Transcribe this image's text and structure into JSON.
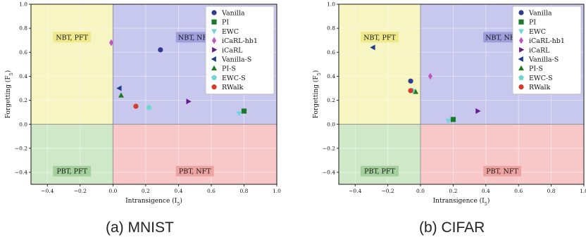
{
  "chart_data": [
    {
      "type": "scatter",
      "caption": "(a) MNIST",
      "xlabel": "Intransigence (I_5)",
      "ylabel": "Forgetting (F_5)",
      "xlim": [
        -0.5,
        1.0
      ],
      "ylim": [
        -0.5,
        1.0
      ],
      "xticks": [
        "−0.4",
        "−0.2",
        "0.0",
        "0.2",
        "0.4",
        "0.6",
        "0.8",
        "1.0"
      ],
      "yticks": [
        "−0.4",
        "−0.2",
        "0.0",
        "0.2",
        "0.4",
        "0.6",
        "0.8",
        "1.0"
      ],
      "grid": true,
      "legend_position": "top-right",
      "regions": [
        {
          "label": "NBT, PFT",
          "x": [
            -0.5,
            0.0
          ],
          "y": [
            0.0,
            1.0
          ],
          "color": "#f7f5c2",
          "label_bg": "#eeea8c"
        },
        {
          "label": "NBT, NFT",
          "x": [
            0.0,
            1.0
          ],
          "y": [
            0.0,
            1.0
          ],
          "color": "#c8c8ee",
          "label_bg": "#9e9edc"
        },
        {
          "label": "PBT, PFT",
          "x": [
            -0.5,
            0.0
          ],
          "y": [
            -0.5,
            0.0
          ],
          "color": "#cfe8c8",
          "label_bg": "#a3d09c"
        },
        {
          "label": "PBT, NFT",
          "x": [
            0.0,
            1.0
          ],
          "y": [
            -0.5,
            0.0
          ],
          "color": "#f8c8c8",
          "label_bg": "#eea3a3"
        }
      ],
      "series": [
        {
          "name": "Vanilla",
          "marker": "circle",
          "color": "#2e3d8f",
          "x": 0.29,
          "y": 0.62
        },
        {
          "name": "PI",
          "marker": "square",
          "color": "#1b7a2a",
          "x": 0.8,
          "y": 0.11
        },
        {
          "name": "EWC",
          "marker": "triangle-down",
          "color": "#6fd3e0",
          "x": 0.77,
          "y": 0.09
        },
        {
          "name": "iCaRL-hb1",
          "marker": "diamond",
          "color": "#c154c1",
          "x": -0.01,
          "y": 0.68
        },
        {
          "name": "iCaRL",
          "marker": "triangle-right",
          "color": "#6a1a8c",
          "x": 0.46,
          "y": 0.19
        },
        {
          "name": "Vanilla-S",
          "marker": "triangle-left",
          "color": "#1d3c8f",
          "x": 0.04,
          "y": 0.3
        },
        {
          "name": "PI-S",
          "marker": "triangle-up",
          "color": "#1f7a1f",
          "x": 0.05,
          "y": 0.24
        },
        {
          "name": "EWC-S",
          "marker": "pentagon",
          "color": "#6fd6d0",
          "x": 0.22,
          "y": 0.14
        },
        {
          "name": "RWalk",
          "marker": "circle",
          "color": "#d83a2a",
          "x": 0.14,
          "y": 0.15
        }
      ]
    },
    {
      "type": "scatter",
      "caption": "(b) CIFAR",
      "xlabel": "Intransigence (I_5)",
      "ylabel": "Forgetting (F_5)",
      "xlim": [
        -0.5,
        1.0
      ],
      "ylim": [
        -0.5,
        1.0
      ],
      "xticks": [
        "−0.4",
        "−0.2",
        "0.0",
        "0.2",
        "0.4",
        "0.6",
        "0.8",
        "1.0"
      ],
      "yticks": [
        "−0.4",
        "−0.2",
        "0.0",
        "0.2",
        "0.4",
        "0.6",
        "0.8",
        "1.0"
      ],
      "grid": true,
      "legend_position": "top-right",
      "regions": [
        {
          "label": "NBT, PFT",
          "x": [
            -0.5,
            0.0
          ],
          "y": [
            0.0,
            1.0
          ],
          "color": "#f7f5c2",
          "label_bg": "#eeea8c"
        },
        {
          "label": "NBT, NFT",
          "x": [
            0.0,
            1.0
          ],
          "y": [
            0.0,
            1.0
          ],
          "color": "#c8c8ee",
          "label_bg": "#9e9edc"
        },
        {
          "label": "PBT, PFT",
          "x": [
            -0.5,
            0.0
          ],
          "y": [
            -0.5,
            0.0
          ],
          "color": "#cfe8c8",
          "label_bg": "#a3d09c"
        },
        {
          "label": "PBT, NFT",
          "x": [
            0.0,
            1.0
          ],
          "y": [
            -0.5,
            0.0
          ],
          "color": "#f8c8c8",
          "label_bg": "#eea3a3"
        }
      ],
      "series": [
        {
          "name": "Vanilla",
          "marker": "circle",
          "color": "#2e3d8f",
          "x": -0.06,
          "y": 0.36
        },
        {
          "name": "PI",
          "marker": "square",
          "color": "#1b7a2a",
          "x": 0.2,
          "y": 0.04
        },
        {
          "name": "EWC",
          "marker": "triangle-down",
          "color": "#6fd3e0",
          "x": 0.17,
          "y": 0.03
        },
        {
          "name": "iCaRL-hb1",
          "marker": "diamond",
          "color": "#c154c1",
          "x": 0.06,
          "y": 0.4
        },
        {
          "name": "iCaRL",
          "marker": "triangle-right",
          "color": "#6a1a8c",
          "x": 0.35,
          "y": 0.11
        },
        {
          "name": "Vanilla-S",
          "marker": "triangle-left",
          "color": "#1d3c8f",
          "x": -0.29,
          "y": 0.64
        },
        {
          "name": "PI-S",
          "marker": "triangle-up",
          "color": "#1f7a1f",
          "x": -0.03,
          "y": 0.27
        },
        {
          "name": "EWC-S",
          "marker": "pentagon",
          "color": "#6fd6d0",
          "x": -0.05,
          "y": 0.28
        },
        {
          "name": "RWalk",
          "marker": "circle",
          "color": "#d83a2a",
          "x": -0.06,
          "y": 0.28
        }
      ]
    }
  ]
}
